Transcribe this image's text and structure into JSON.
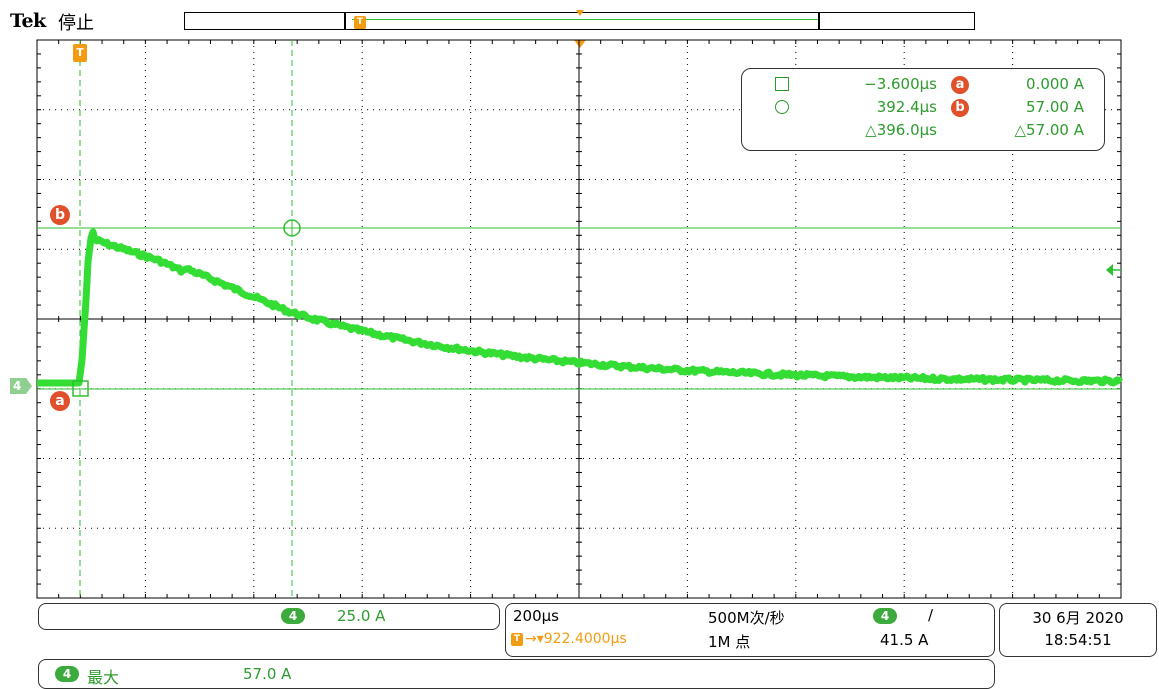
{
  "header": {
    "brand": "Tek",
    "status": "停止"
  },
  "record": {
    "trigger_marker": "T"
  },
  "markers": {
    "trigger": "T",
    "cursor_a": "a",
    "cursor_b": "b",
    "channel": "4"
  },
  "cursors": {
    "t1": "−3.600µs",
    "t2": "392.4µs",
    "dt": "△396.0µs",
    "a_label": "a",
    "a_value": "0.000 A",
    "b_label": "b",
    "b_value": "57.00 A",
    "dv": "△57.00 A"
  },
  "bottom": {
    "channel": "4",
    "ch_scale": "25.0 A",
    "timebase": "200µs",
    "trigger_pos": "922.4000µs",
    "sample_rate": "500M次/秒",
    "record_length": "1M 点",
    "trig_channel": "4",
    "trig_slope": "∕",
    "trig_level": "41.5 A",
    "date": "30 6月 2020",
    "time": "18:54:51",
    "measure_channel": "4",
    "measure_label": "最大",
    "measure_value": "57.0 A"
  },
  "colors": {
    "trace": "#33dd33",
    "grid": "#000000",
    "cursor": "#2fbf2f",
    "orange": "#f39c12",
    "badge_red": "#e0502a"
  }
}
